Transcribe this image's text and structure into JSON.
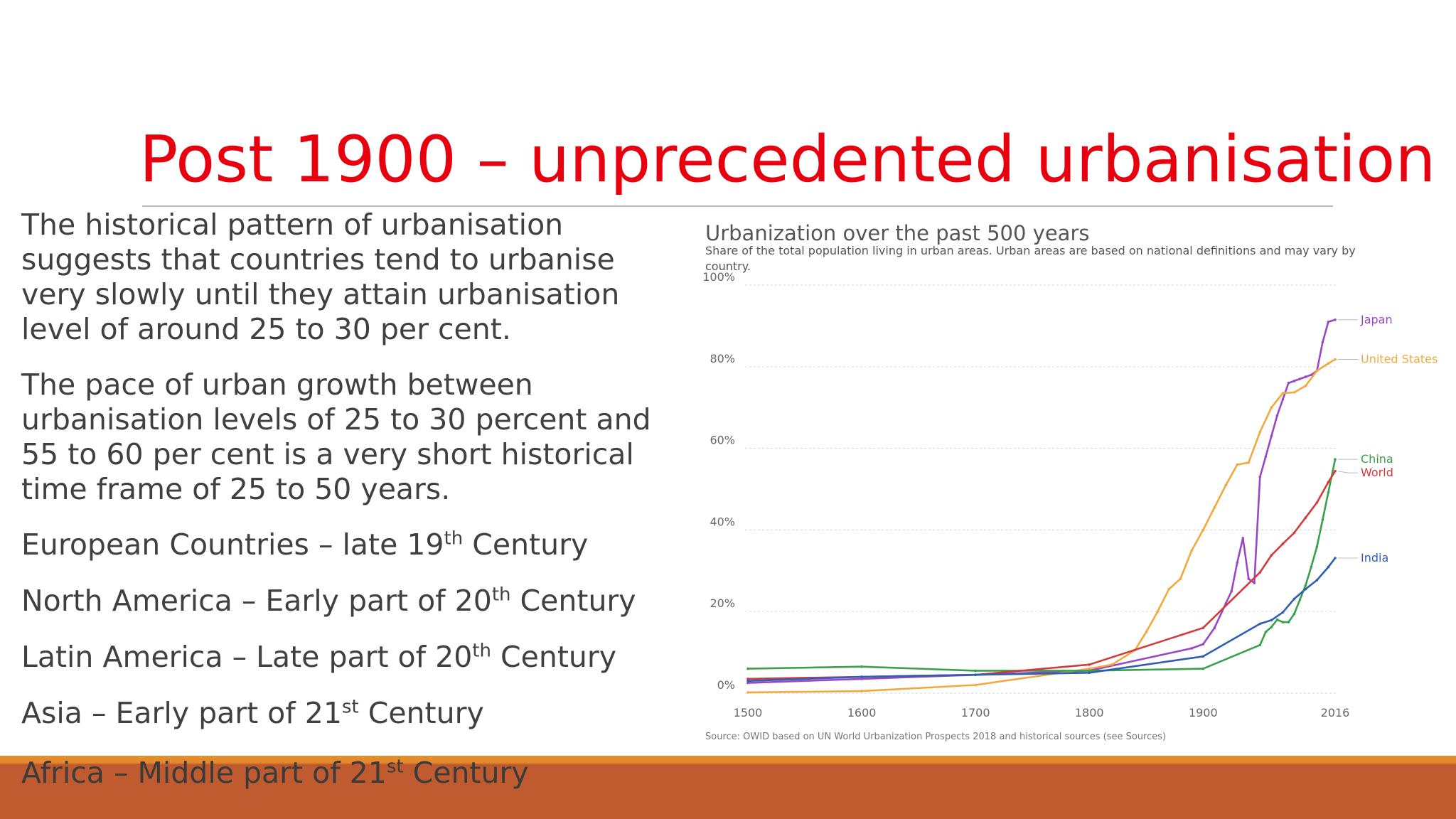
{
  "slide": {
    "title": "Post 1900 – unprecedented urbanisation",
    "paragraph1": "The historical pattern of urbanisation suggests that countries tend to urbanise very slowly until they attain urbanisation level of around 25 to 30 per cent.",
    "paragraph2": "The pace of urban growth between urbanisation levels of 25 to 30 percent and 55 to 60 per cent is a very short historical time frame of 25 to 50 years.",
    "eras": [
      {
        "text": "European Countries – late 19",
        "sup": "th",
        "tail": " Century"
      },
      {
        "text": "North America – Early part of 20",
        "sup": "th",
        "tail": " Century"
      },
      {
        "text": "Latin America – Late part of 20",
        "sup": "th",
        "tail": " Century"
      },
      {
        "text": "Asia – Early part of 21",
        "sup": "st",
        "tail": " Century"
      },
      {
        "text": "Africa – Middle part of 21",
        "sup": "st",
        "tail": " Century"
      }
    ],
    "colors": {
      "title": "#e8000f",
      "bar": "#bf5b2e",
      "accent": "#e48b2b"
    }
  },
  "chart_data": {
    "type": "line",
    "title": "Urbanization over the past 500 years",
    "subtitle_line1": "Share of the total population living in urban areas. Urban areas are based on national definitions and may vary by",
    "subtitle_line2": "country.",
    "source": "Source: OWID based on UN World Urbanization Prospects 2018 and historical sources (see Sources)",
    "x_ticks": [
      "1500",
      "1600",
      "1700",
      "1800",
      "1900",
      "2016"
    ],
    "x_tick_values": [
      1500,
      1600,
      1700,
      1800,
      1900,
      2016
    ],
    "y_ticks": [
      "0%",
      "20%",
      "40%",
      "60%",
      "80%",
      "100%"
    ],
    "y_tick_values": [
      0,
      20,
      40,
      60,
      80,
      100
    ],
    "xlim": [
      1500,
      2016
    ],
    "ylim": [
      0,
      100
    ],
    "grid": true,
    "legend_placement": "right, at line ends",
    "series": [
      {
        "name": "Japan",
        "color": "#9a47c4",
        "points": [
          [
            1500,
            2.5
          ],
          [
            1600,
            3.5
          ],
          [
            1700,
            4.5
          ],
          [
            1800,
            5.5
          ],
          [
            1890,
            11
          ],
          [
            1900,
            12
          ],
          [
            1910,
            16
          ],
          [
            1920,
            22
          ],
          [
            1925,
            25
          ],
          [
            1930,
            32
          ],
          [
            1935,
            38
          ],
          [
            1940,
            28
          ],
          [
            1945,
            27
          ],
          [
            1950,
            53
          ],
          [
            1955,
            58
          ],
          [
            1960,
            63
          ],
          [
            1965,
            68
          ],
          [
            1970,
            72
          ],
          [
            1975,
            76
          ],
          [
            1980,
            76.5
          ],
          [
            1985,
            77
          ],
          [
            1990,
            77.5
          ],
          [
            1995,
            78
          ],
          [
            2000,
            79
          ],
          [
            2005,
            86
          ],
          [
            2010,
            91
          ],
          [
            2016,
            91.5
          ]
        ]
      },
      {
        "name": "United States",
        "color": "#f2a93b",
        "points": [
          [
            1500,
            0.2
          ],
          [
            1600,
            0.5
          ],
          [
            1700,
            2
          ],
          [
            1800,
            6
          ],
          [
            1820,
            7
          ],
          [
            1840,
            10.5
          ],
          [
            1850,
            15
          ],
          [
            1860,
            20
          ],
          [
            1870,
            25.5
          ],
          [
            1880,
            28
          ],
          [
            1890,
            35
          ],
          [
            1900,
            40
          ],
          [
            1910,
            45.5
          ],
          [
            1920,
            51
          ],
          [
            1930,
            56
          ],
          [
            1940,
            56.5
          ],
          [
            1950,
            64
          ],
          [
            1960,
            70
          ],
          [
            1970,
            73.5
          ],
          [
            1980,
            73.7
          ],
          [
            1990,
            75.3
          ],
          [
            2000,
            79
          ],
          [
            2010,
            80.8
          ],
          [
            2016,
            81.8
          ]
        ]
      },
      {
        "name": "China",
        "color": "#3aa04a",
        "points": [
          [
            1500,
            6
          ],
          [
            1600,
            6.5
          ],
          [
            1700,
            5.5
          ],
          [
            1800,
            5.5
          ],
          [
            1900,
            6
          ],
          [
            1950,
            11.8
          ],
          [
            1955,
            15
          ],
          [
            1960,
            16.2
          ],
          [
            1965,
            18
          ],
          [
            1970,
            17.4
          ],
          [
            1975,
            17.4
          ],
          [
            1980,
            19.4
          ],
          [
            1985,
            22.9
          ],
          [
            1990,
            26.4
          ],
          [
            1995,
            31
          ],
          [
            2000,
            35.9
          ],
          [
            2005,
            42.5
          ],
          [
            2010,
            49.2
          ],
          [
            2016,
            57.3
          ]
        ]
      },
      {
        "name": "World",
        "color": "#d03b3b",
        "points": [
          [
            1500,
            3.5
          ],
          [
            1600,
            4
          ],
          [
            1700,
            4.5
          ],
          [
            1800,
            7
          ],
          [
            1900,
            16
          ],
          [
            1950,
            29.6
          ],
          [
            1960,
            33.8
          ],
          [
            1970,
            36.6
          ],
          [
            1980,
            39.3
          ],
          [
            1990,
            43
          ],
          [
            2000,
            46.7
          ],
          [
            2010,
            51.7
          ],
          [
            2016,
            54.4
          ]
        ]
      },
      {
        "name": "India",
        "color": "#2f5fb0",
        "points": [
          [
            1500,
            3
          ],
          [
            1600,
            4
          ],
          [
            1700,
            4.5
          ],
          [
            1800,
            5
          ],
          [
            1900,
            9
          ],
          [
            1950,
            17
          ],
          [
            1960,
            17.9
          ],
          [
            1970,
            19.8
          ],
          [
            1980,
            23.1
          ],
          [
            1990,
            25.5
          ],
          [
            2000,
            27.7
          ],
          [
            2010,
            30.9
          ],
          [
            2016,
            33.1
          ]
        ]
      }
    ]
  }
}
